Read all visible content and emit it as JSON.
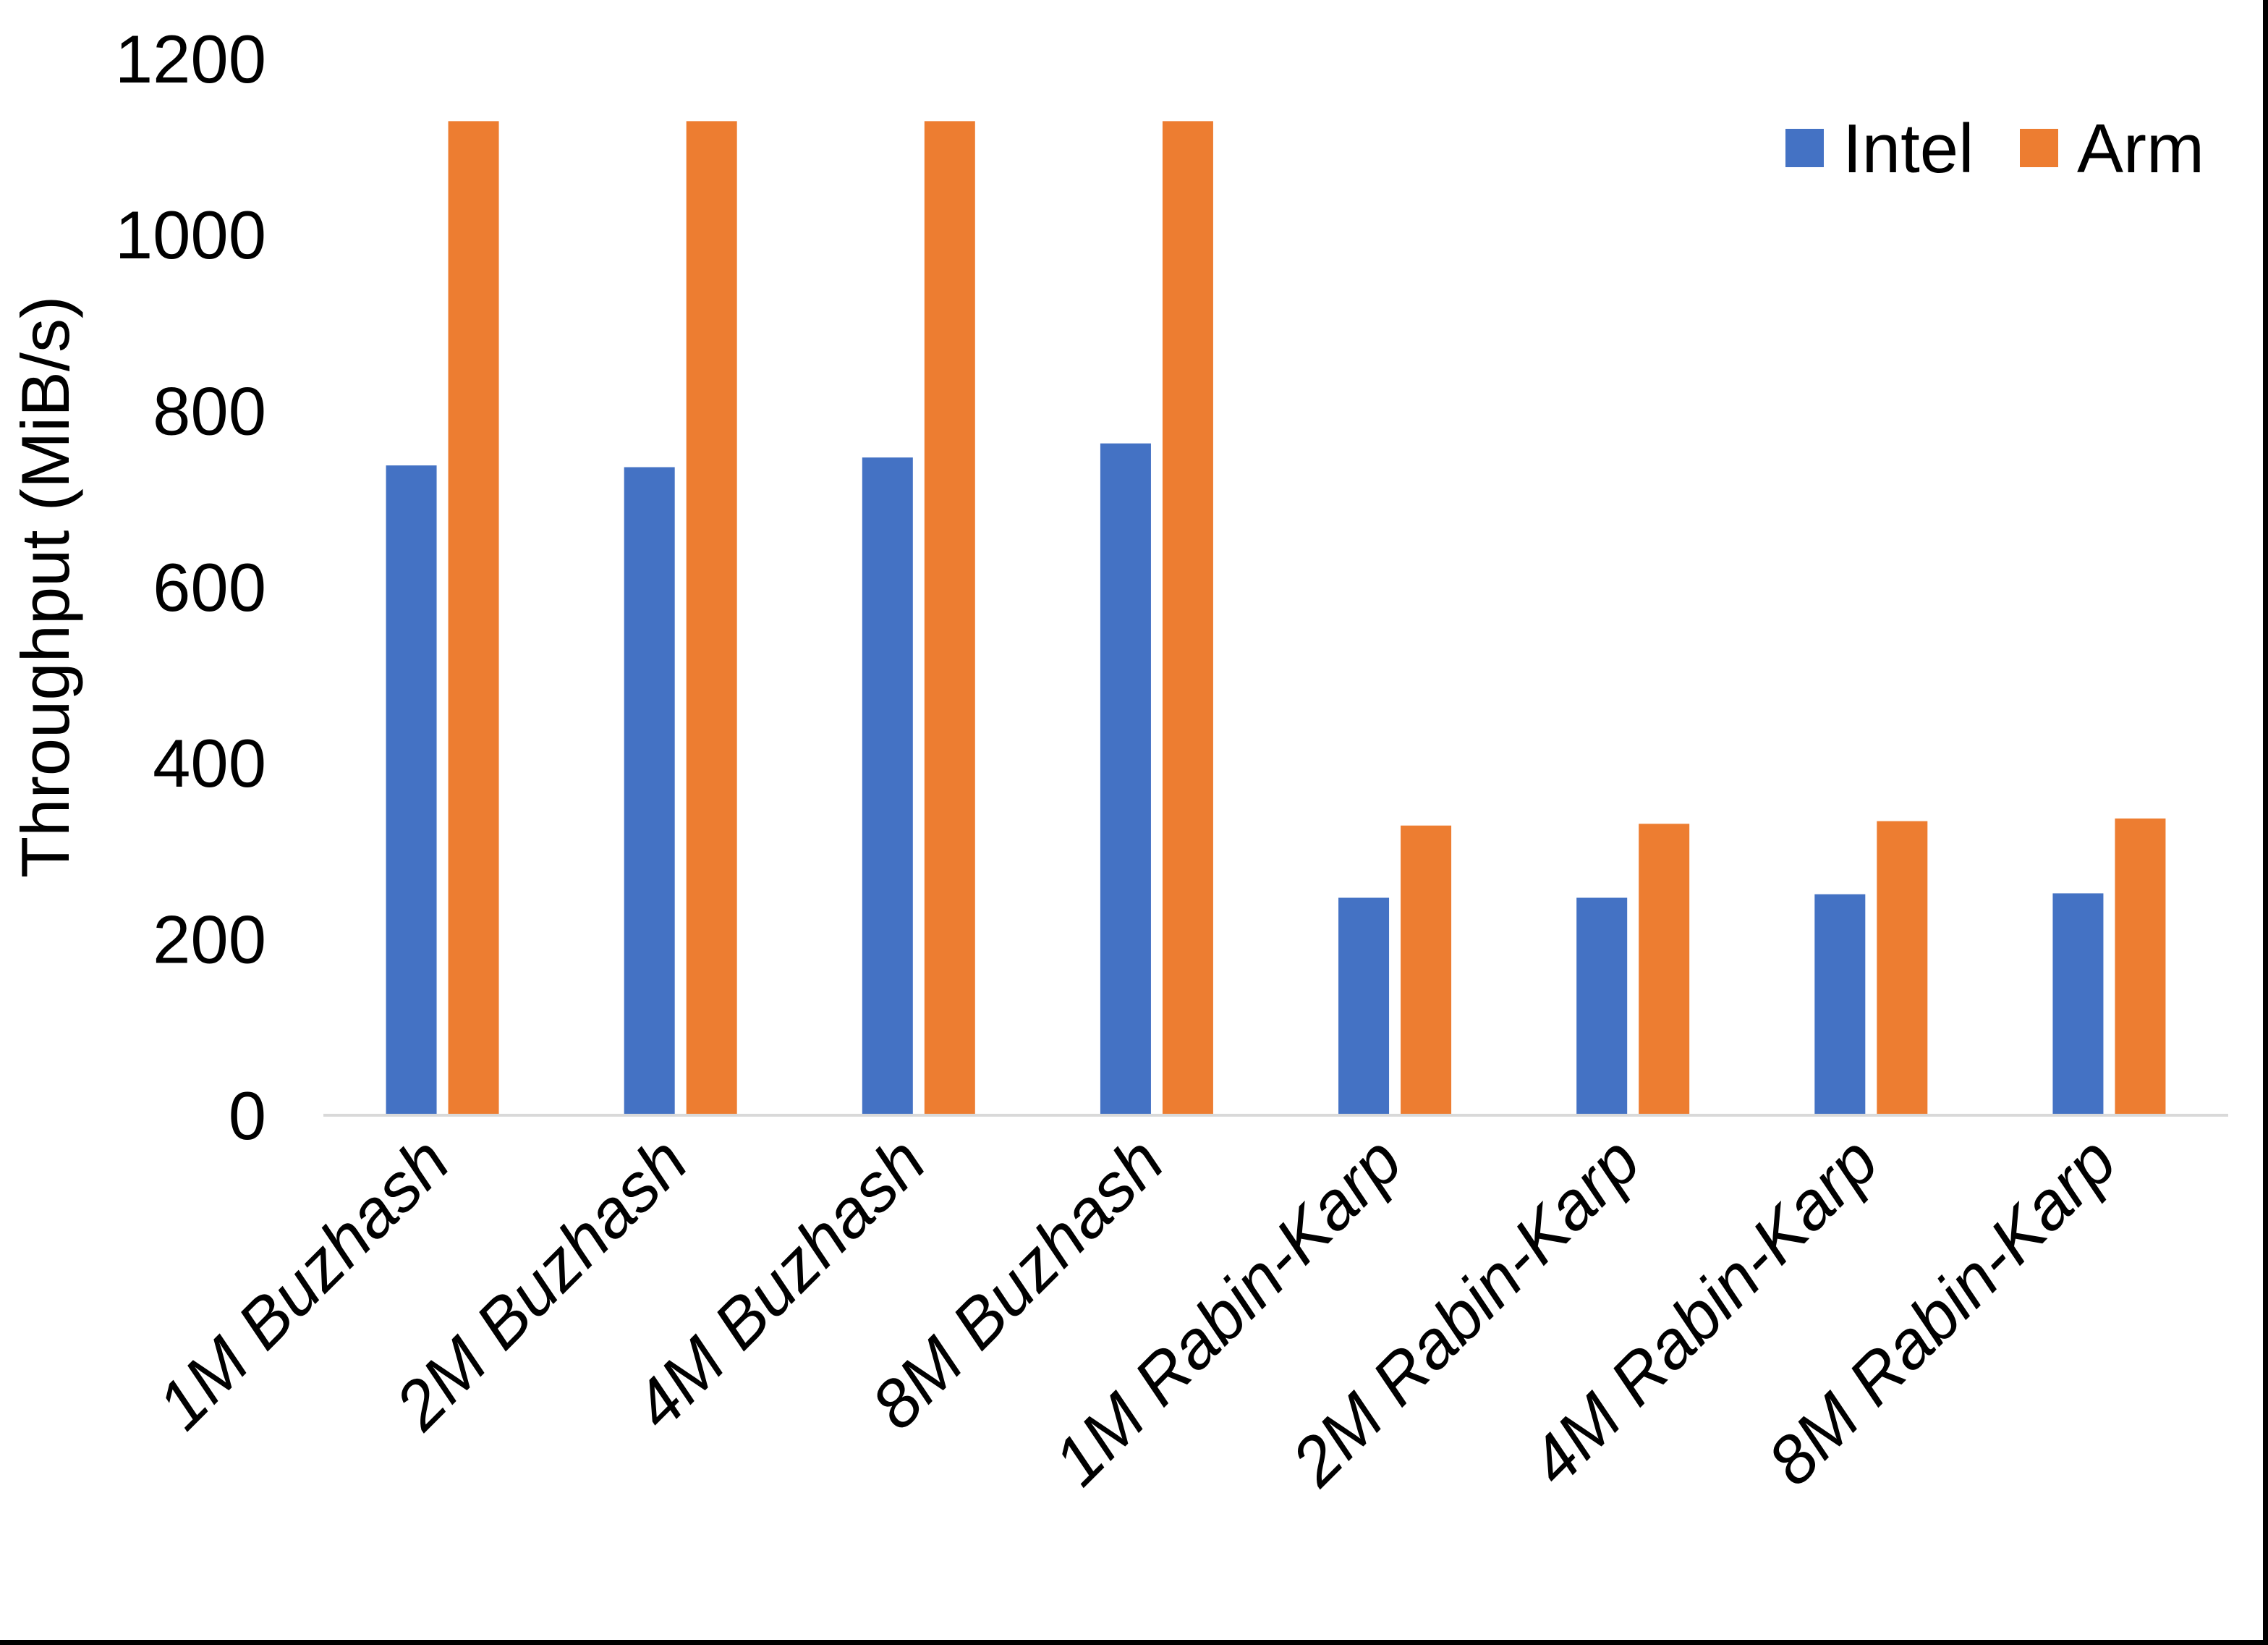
{
  "chart_data": {
    "type": "bar",
    "title": "",
    "categories": [
      "1M Buzhash",
      "2M Buzhash",
      "4M Buzhash",
      "8M Buzhash",
      "1M Rabin-Karp",
      "2M Rabin-Karp",
      "4M Rabin-Karp",
      "8M Rabin-Karp"
    ],
    "series": [
      {
        "name": "Intel",
        "color": "#4472C4",
        "values": [
          738,
          736,
          747,
          763,
          247,
          247,
          251,
          252
        ]
      },
      {
        "name": "Arm",
        "color": "#ED7D31",
        "values": [
          1129,
          1129,
          1129,
          1129,
          329,
          331,
          334,
          337
        ]
      }
    ],
    "xlabel": "",
    "ylabel": "Throughput (MiB/s)",
    "ylim": [
      0,
      1200
    ],
    "yticks": [
      0,
      200,
      400,
      600,
      800,
      1000,
      1200
    ],
    "grid": false,
    "legend_position": "top-right",
    "axis_line_color": "#D9D9D9",
    "text_color": "#000000",
    "category_label_rotation_deg": -45
  }
}
